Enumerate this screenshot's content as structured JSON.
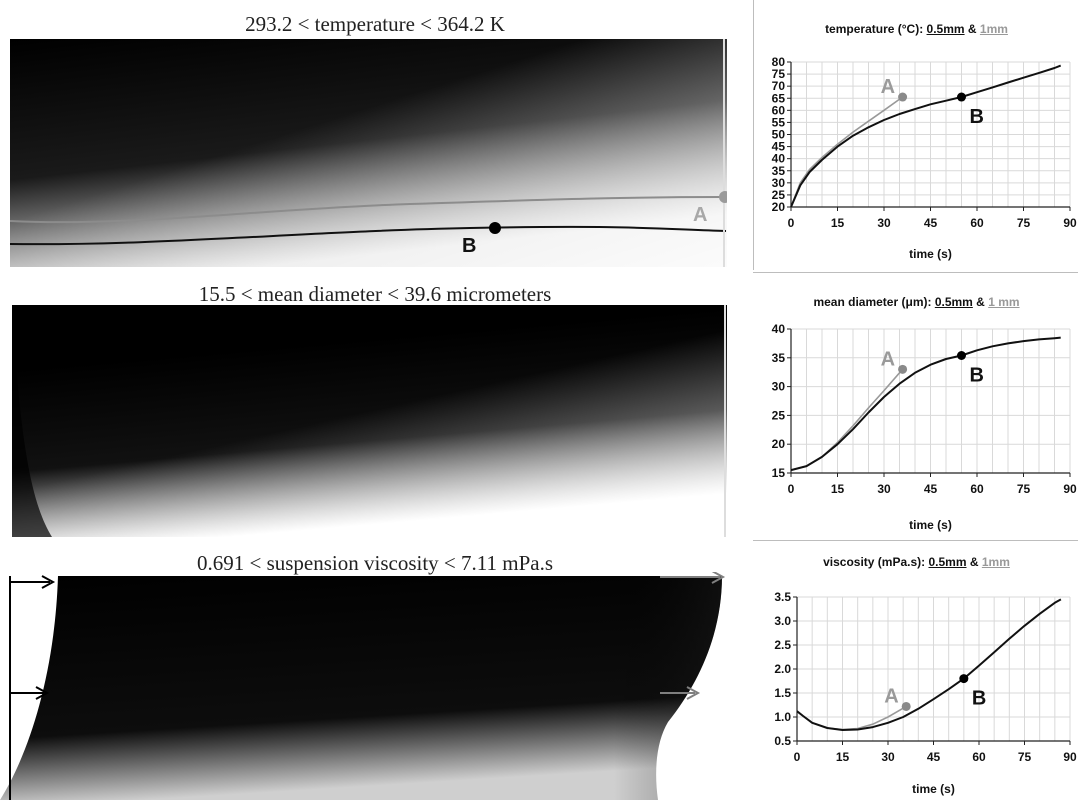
{
  "fields": [
    {
      "title": "293.2 < temperature < 364.2 K",
      "label_a": "A",
      "label_b": "B"
    },
    {
      "title": "15.5 < mean diameter < 39.6 micrometers"
    },
    {
      "title": "0.691 < suspension viscosity < 7.11 mPa.s"
    }
  ],
  "colors": {
    "series_a": "#999999",
    "series_b": "#111111",
    "grid": "#d9d9d9"
  },
  "chart_data": [
    {
      "type": "line",
      "title": "temperature (°C): 0.5mm & 1mm",
      "title_parts": [
        "temperature (°C): ",
        "0.5mm",
        " & ",
        "1mm"
      ],
      "xlabel": "time (s)",
      "ylabel": "",
      "xlim": [
        0,
        90
      ],
      "ylim": [
        20,
        80
      ],
      "xticks": [
        0,
        15,
        30,
        45,
        60,
        75,
        90
      ],
      "yticks": [
        20,
        25,
        30,
        35,
        40,
        45,
        50,
        55,
        60,
        65,
        70,
        75,
        80
      ],
      "xticklabels": [
        "0",
        "15",
        "30",
        "45",
        "60",
        "75",
        "90"
      ],
      "yticklabels": [
        "20",
        "25",
        "30",
        "35",
        "40",
        "45",
        "50",
        "55",
        "60",
        "65",
        "70",
        "75",
        "80"
      ],
      "grid": true,
      "series": [
        {
          "x": [
            0,
            3,
            6,
            10,
            15,
            20,
            25,
            30,
            35,
            40,
            45,
            50,
            55,
            60,
            65,
            70,
            75,
            80,
            85,
            87
          ],
          "y": [
            20,
            29,
            34.5,
            39.5,
            45,
            49.5,
            53,
            56,
            58.5,
            60.5,
            62.5,
            64,
            65.5,
            67.5,
            69.5,
            71.5,
            73.5,
            75.5,
            77.5,
            78.5
          ]
        },
        {
          "x": [
            0,
            3,
            6,
            10,
            15,
            20,
            25,
            30,
            36
          ],
          "y": [
            20,
            30,
            35.5,
            40.5,
            46,
            51,
            55.5,
            60,
            65.5
          ]
        }
      ],
      "markers": [
        {
          "label": "A",
          "x": 36,
          "y": 65.5,
          "series": 1
        },
        {
          "label": "B",
          "x": 55,
          "y": 65.5,
          "series": 0
        }
      ]
    },
    {
      "type": "line",
      "title": "mean diameter (μm): 0.5mm & 1 mm",
      "title_parts": [
        "mean diameter (μm): ",
        "0.5mm",
        " & ",
        "1 mm"
      ],
      "xlabel": "time (s)",
      "ylabel": "",
      "xlim": [
        0,
        90
      ],
      "ylim": [
        15,
        40
      ],
      "xticks": [
        0,
        15,
        30,
        45,
        60,
        75,
        90
      ],
      "yticks": [
        15,
        20,
        25,
        30,
        35,
        40
      ],
      "xticklabels": [
        "0",
        "15",
        "30",
        "45",
        "60",
        "75",
        "90"
      ],
      "yticklabels": [
        "15",
        "20",
        "25",
        "30",
        "35",
        "40"
      ],
      "grid": true,
      "series": [
        {
          "x": [
            0,
            5,
            10,
            15,
            20,
            25,
            30,
            35,
            40,
            45,
            50,
            55,
            60,
            65,
            70,
            75,
            80,
            85,
            87
          ],
          "y": [
            15.5,
            16.2,
            17.8,
            20,
            22.6,
            25.5,
            28.2,
            30.5,
            32.4,
            33.8,
            34.8,
            35.4,
            36.3,
            37,
            37.5,
            37.9,
            38.2,
            38.4,
            38.5
          ]
        },
        {
          "x": [
            0,
            5,
            10,
            15,
            20,
            25,
            30,
            36
          ],
          "y": [
            15.5,
            16.2,
            17.8,
            20.3,
            23.2,
            26.3,
            29.3,
            33
          ]
        }
      ],
      "markers": [
        {
          "label": "A",
          "x": 36,
          "y": 33,
          "series": 1
        },
        {
          "label": "B",
          "x": 55,
          "y": 35.4,
          "series": 0
        }
      ]
    },
    {
      "type": "line",
      "title": "viscosity (mPa.s): 0.5mm & 1mm",
      "title_parts": [
        "viscosity (mPa.s): ",
        "0.5mm",
        " & ",
        "1mm"
      ],
      "xlabel": "time (s)",
      "ylabel": "",
      "xlim": [
        0,
        90
      ],
      "ylim": [
        0.5,
        3.5
      ],
      "xticks": [
        0,
        15,
        30,
        45,
        60,
        75,
        90
      ],
      "yticks": [
        0.5,
        1.0,
        1.5,
        2.0,
        2.5,
        3.0,
        3.5
      ],
      "xticklabels": [
        "0",
        "15",
        "30",
        "45",
        "60",
        "75",
        "90"
      ],
      "yticklabels": [
        "0.5",
        "1.0",
        "1.5",
        "2.0",
        "2.5",
        "3.0",
        "3.5"
      ],
      "grid": true,
      "series": [
        {
          "x": [
            0,
            2,
            5,
            10,
            15,
            20,
            25,
            30,
            35,
            40,
            45,
            50,
            55,
            60,
            65,
            70,
            75,
            80,
            85,
            87
          ],
          "y": [
            1.12,
            1.02,
            0.88,
            0.77,
            0.73,
            0.74,
            0.79,
            0.88,
            1.0,
            1.17,
            1.37,
            1.58,
            1.8,
            2.07,
            2.35,
            2.63,
            2.9,
            3.15,
            3.38,
            3.45
          ]
        },
        {
          "x": [
            0,
            2,
            5,
            10,
            15,
            20,
            25,
            30,
            36
          ],
          "y": [
            1.12,
            1.02,
            0.88,
            0.77,
            0.74,
            0.76,
            0.85,
            1.0,
            1.22
          ]
        }
      ],
      "markers": [
        {
          "label": "A",
          "x": 36,
          "y": 1.22,
          "series": 1
        },
        {
          "label": "B",
          "x": 55,
          "y": 1.8,
          "series": 0
        }
      ]
    }
  ]
}
